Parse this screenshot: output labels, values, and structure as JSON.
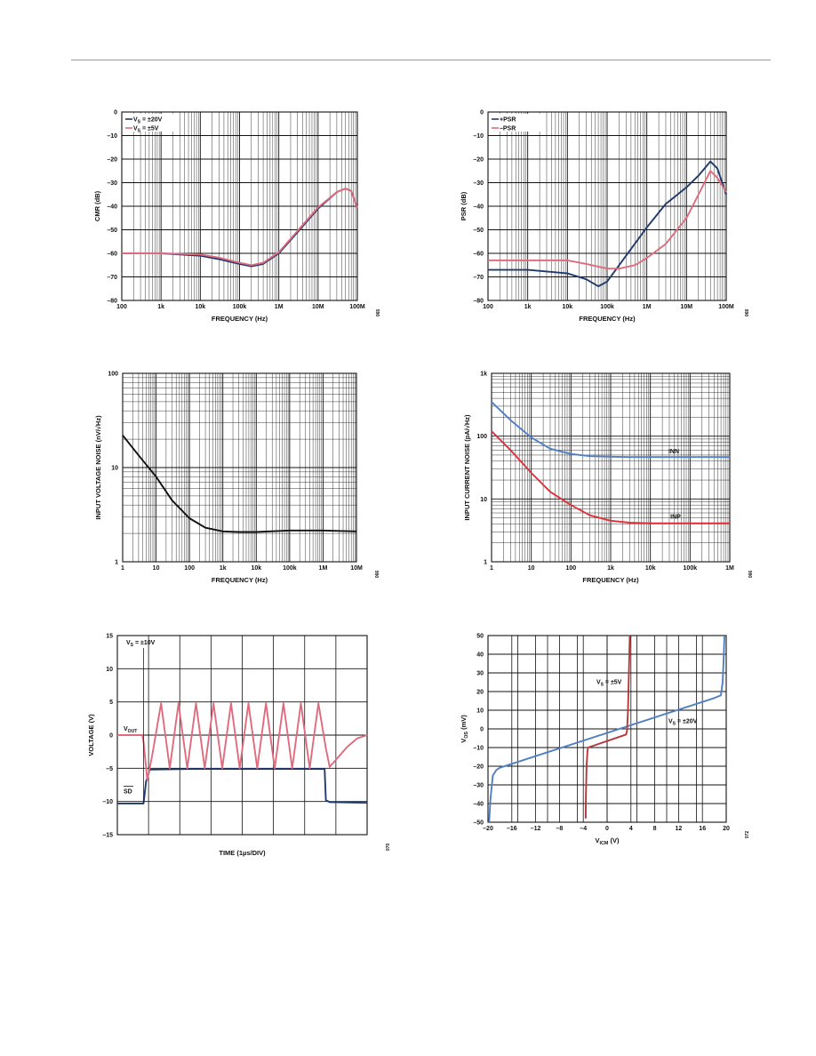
{
  "chart_data": [
    {
      "type": "line",
      "xlabel": "FREQUENCY (Hz)",
      "ylabel": "CMR (dB)",
      "x_scale": "log",
      "xlim": [
        100,
        100000000
      ],
      "ylim": [
        -80,
        0
      ],
      "x_ticks": [
        100,
        1000,
        10000,
        100000,
        1000000,
        10000000,
        100000000
      ],
      "x_tick_labels": [
        "100",
        "1k",
        "10k",
        "100k",
        "1M",
        "10M",
        "100M"
      ],
      "y_ticks": [
        0,
        -10,
        -20,
        -30,
        -40,
        -50,
        -60,
        -70,
        -80
      ],
      "y_tick_labels": [
        "0",
        "–10",
        "–20",
        "–30",
        "–40",
        "–50",
        "–60",
        "–70",
        "–80"
      ],
      "grid": true,
      "legend": "top-left",
      "legend_entries": [
        {
          "main": "V",
          "sub": "S",
          "rest": " = ±20V"
        },
        {
          "main": "V",
          "sub": "S",
          "rest": " = ±5V"
        }
      ],
      "side_label": "065",
      "series": [
        {
          "color": "#1f3a6e",
          "x": [
            100,
            1000,
            10000,
            30000,
            100000,
            200000,
            400000,
            1000000,
            3000000,
            10000000,
            30000000,
            50000000,
            70000000,
            100000000
          ],
          "y": [
            -60,
            -60,
            -61,
            -62.5,
            -64.5,
            -65.5,
            -64.5,
            -60,
            -51,
            -41,
            -34,
            -32.5,
            -33.5,
            -41
          ]
        },
        {
          "color": "#e06b7d",
          "x": [
            100,
            1000,
            10000,
            30000,
            100000,
            200000,
            400000,
            1000000,
            3000000,
            10000000,
            30000000,
            50000000,
            70000000,
            100000000
          ],
          "y": [
            -60,
            -60,
            -60.5,
            -61.8,
            -64,
            -65,
            -64,
            -59.5,
            -50.5,
            -40.5,
            -34,
            -32.5,
            -33.5,
            -41
          ]
        }
      ]
    },
    {
      "type": "line",
      "xlabel": "FREQUENCY (Hz)",
      "ylabel": "PSR (dB)",
      "x_scale": "log",
      "xlim": [
        100,
        100000000
      ],
      "ylim": [
        -80,
        0
      ],
      "x_ticks": [
        100,
        1000,
        10000,
        100000,
        1000000,
        10000000,
        100000000
      ],
      "x_tick_labels": [
        "100",
        "1k",
        "10k",
        "100k",
        "1M",
        "10M",
        "100M"
      ],
      "y_ticks": [
        0,
        -10,
        -20,
        -30,
        -40,
        -50,
        -60,
        -70,
        -80
      ],
      "y_tick_labels": [
        "0",
        "–10",
        "–20",
        "–30",
        "–40",
        "–50",
        "–60",
        "–70",
        "–80"
      ],
      "grid": true,
      "legend": "top-left",
      "legend_entries": [
        {
          "main": "+PSR",
          "sub": "",
          "rest": ""
        },
        {
          "main": "–PSR",
          "sub": "",
          "rest": ""
        }
      ],
      "side_label": "068",
      "series": [
        {
          "color": "#1f3a6e",
          "x": [
            100,
            1000,
            10000,
            30000,
            60000,
            100000,
            300000,
            1000000,
            3000000,
            10000000,
            20000000,
            40000000,
            60000000,
            100000000
          ],
          "y": [
            -67,
            -67,
            -68.5,
            -71,
            -74,
            -72,
            -61,
            -49,
            -39,
            -32,
            -27,
            -21,
            -24,
            -35
          ]
        },
        {
          "color": "#e06b7d",
          "x": [
            100,
            1000,
            10000,
            30000,
            100000,
            200000,
            500000,
            1000000,
            3000000,
            10000000,
            20000000,
            40000000,
            60000000,
            100000000
          ],
          "y": [
            -63,
            -63,
            -63,
            -64.5,
            -66.5,
            -66.5,
            -65,
            -62,
            -56,
            -45,
            -35,
            -25,
            -28,
            -34
          ]
        }
      ]
    },
    {
      "type": "line",
      "xlabel": "FREQUENCY (Hz)",
      "ylabel": "INPUT VOLTAGE NOISE (nV/√Hz)",
      "x_scale": "log",
      "y_scale": "log",
      "xlim": [
        1,
        10000000
      ],
      "ylim": [
        1,
        100
      ],
      "x_ticks": [
        1,
        10,
        100,
        1000,
        10000,
        100000,
        1000000,
        10000000
      ],
      "x_tick_labels": [
        "1",
        "10",
        "100",
        "1k",
        "10k",
        "100k",
        "1M",
        "10M"
      ],
      "y_ticks": [
        1,
        10,
        100
      ],
      "y_tick_labels": [
        "1",
        "10",
        "100"
      ],
      "grid": true,
      "side_label": "066",
      "series": [
        {
          "color": "#111111",
          "x": [
            1,
            3,
            10,
            30,
            100,
            300,
            1000,
            3000,
            10000,
            100000,
            1000000,
            10000000
          ],
          "y": [
            22,
            13.5,
            8,
            4.5,
            2.9,
            2.3,
            2.1,
            2.07,
            2.07,
            2.15,
            2.15,
            2.1
          ]
        }
      ]
    },
    {
      "type": "line",
      "xlabel": "FREQUENCY (Hz)",
      "ylabel": "INPUT CURRENT NOISE (pA/√Hz)",
      "x_scale": "log",
      "y_scale": "log",
      "xlim": [
        1,
        1000000
      ],
      "ylim": [
        1,
        1000
      ],
      "x_ticks": [
        1,
        10,
        100,
        1000,
        10000,
        100000,
        1000000
      ],
      "x_tick_labels": [
        "1",
        "10",
        "100",
        "1k",
        "10k",
        "100k",
        "1M"
      ],
      "y_ticks": [
        1,
        10,
        100,
        1000
      ],
      "y_tick_labels": [
        "1",
        "10",
        "100",
        "1k"
      ],
      "grid": true,
      "side_label": "066",
      "annotations": [
        "INN",
        "INP"
      ],
      "series": [
        {
          "color": "#4f7fc4",
          "x": [
            1,
            3,
            10,
            30,
            100,
            300,
            1000,
            3000,
            10000,
            1000000
          ],
          "y": [
            350,
            180,
            95,
            63,
            52,
            48,
            47,
            46.5,
            46.5,
            46.5
          ]
        },
        {
          "color": "#e0303c",
          "x": [
            1,
            3,
            10,
            30,
            100,
            300,
            1000,
            3000,
            10000,
            1000000
          ],
          "y": [
            120,
            60,
            26,
            13,
            8,
            5.5,
            4.5,
            4.2,
            4.1,
            4.1
          ]
        }
      ]
    },
    {
      "type": "line",
      "xlabel": "TIME (1µs/DIV)",
      "ylabel": "VOLTAGE (V)",
      "xlim": [
        0,
        10
      ],
      "ylim": [
        -15,
        15
      ],
      "y_ticks": [
        15,
        10,
        5,
        0,
        -5,
        -10,
        -15
      ],
      "y_tick_labels": [
        "15",
        "10",
        "5",
        "0",
        "–5",
        "–10",
        "–15"
      ],
      "grid": true,
      "condition": {
        "main": "V",
        "sub": "S",
        "rest": " = ±10V"
      },
      "labels": [
        {
          "main": "V",
          "sub": "OUT",
          "rest": ""
        },
        {
          "main": "SD",
          "sub": "",
          "rest": ""
        }
      ],
      "side_label": "070",
      "series": [
        {
          "color": "#1f3a6e",
          "x": [
            0,
            1.05,
            1.15,
            1.3,
            3,
            6,
            8,
            8.3,
            8.35,
            8.5,
            10
          ],
          "y": [
            -10.3,
            -10.3,
            -7,
            -5.2,
            -5.1,
            -5.1,
            -5.1,
            -5.1,
            -9.8,
            -10.1,
            -10.2
          ]
        },
        {
          "color": "#e06b7d",
          "x": [
            0,
            1.0,
            1.05,
            1.2,
            1.4,
            1.75,
            2.1,
            2.45,
            2.8,
            3.15,
            3.5,
            3.85,
            4.2,
            4.55,
            4.9,
            5.25,
            5.6,
            5.95,
            6.3,
            6.65,
            7.0,
            7.35,
            7.7,
            8.05,
            8.35,
            8.5,
            8.8,
            9.2,
            9.6,
            10
          ],
          "y": [
            0,
            0,
            -1,
            -6.8,
            -3,
            4.8,
            -5,
            4.8,
            -5,
            4.8,
            -5,
            4.8,
            -5,
            4.8,
            -5,
            4.8,
            -5,
            4.8,
            -5,
            4.8,
            -5,
            4.8,
            -5,
            4.8,
            -2,
            -4.8,
            -3.5,
            -1.8,
            -0.5,
            0
          ]
        }
      ]
    },
    {
      "type": "line",
      "xlabel": {
        "main": "V",
        "sub": "ICM",
        "rest": " (V)"
      },
      "ylabel": {
        "main": "V",
        "sub": "OS",
        "rest": " (mV)"
      },
      "xlim": [
        -20,
        20
      ],
      "ylim": [
        -50,
        50
      ],
      "x_ticks": [
        -20,
        -16,
        -12,
        -8,
        -4,
        0,
        4,
        8,
        12,
        16,
        20
      ],
      "x_tick_labels": [
        "–20",
        "–16",
        "–12",
        "–8",
        "–4",
        "0",
        "4",
        "8",
        "12",
        "16",
        "20"
      ],
      "y_ticks": [
        50,
        40,
        30,
        20,
        10,
        0,
        -10,
        -20,
        -30,
        -40,
        -50
      ],
      "y_tick_labels": [
        "50",
        "40",
        "30",
        "20",
        "10",
        "0",
        "–10",
        "–20",
        "–30",
        "–40",
        "–50"
      ],
      "grid": true,
      "labels": [
        {
          "main": "V",
          "sub": "S",
          "rest": " = ±5V"
        },
        {
          "main": "V",
          "sub": "S",
          "rest": " = ±20V"
        }
      ],
      "side_label": "072",
      "series": [
        {
          "color": "#4f7fc4",
          "x": [
            -19.8,
            -19.6,
            -19.2,
            -18.6,
            -18,
            18,
            19.1,
            19.4,
            19.6,
            19.7
          ],
          "y": [
            -50,
            -38,
            -25,
            -22,
            -20.8,
            16.5,
            18,
            25,
            40,
            50
          ]
        },
        {
          "color": "#b5383c",
          "x": [
            -3.6,
            -3.55,
            -3.45,
            -3.3,
            -3.2,
            3.2,
            3.35,
            3.5,
            3.65,
            3.8
          ],
          "y": [
            -48,
            -35,
            -20,
            -12,
            -10,
            -3,
            -1,
            10,
            30,
            50
          ]
        }
      ]
    }
  ]
}
